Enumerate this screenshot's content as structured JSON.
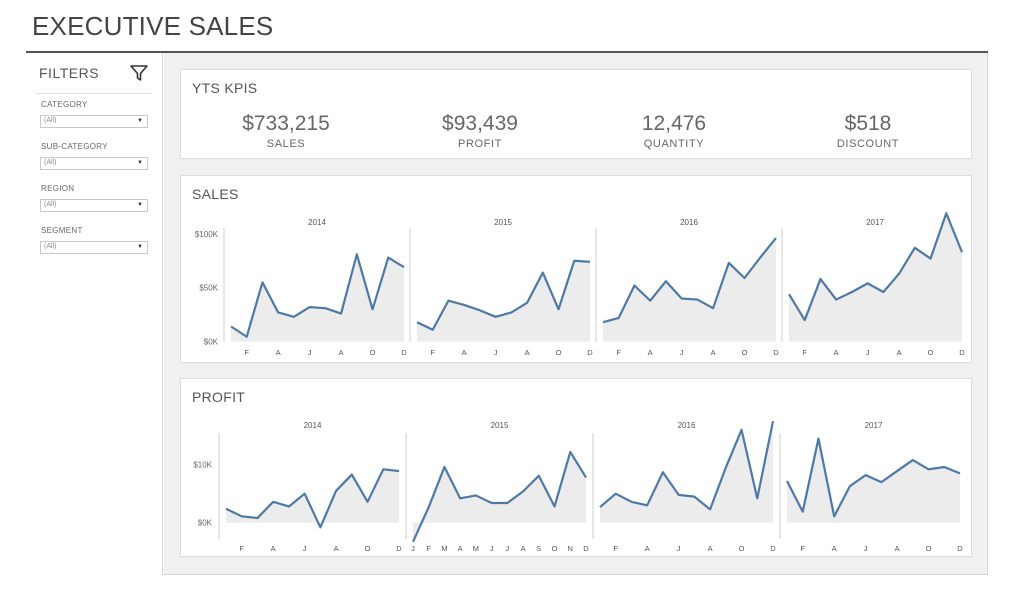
{
  "title": "EXECUTIVE SALES",
  "filters": {
    "title": "FILTERS",
    "icon": "funnel-icon",
    "items": [
      {
        "label": "CATEGORY",
        "value": "(All)"
      },
      {
        "label": "SUB-CATEGORY",
        "value": "(All)"
      },
      {
        "label": "REGION",
        "value": "(All)"
      },
      {
        "label": "SEGMENT",
        "value": "(All)"
      }
    ]
  },
  "kpis": {
    "title": "YTS KPIS",
    "items": [
      {
        "value": "$733,215",
        "label": "SALES"
      },
      {
        "value": "$93,439",
        "label": "PROFIT"
      },
      {
        "value": "12,476",
        "label": "QUANTITY"
      },
      {
        "value": "$518",
        "label": "DISCOUNT"
      }
    ]
  },
  "colors": {
    "line": "#4e79a7",
    "area": "#ececec",
    "divider": "#cfcfcf"
  },
  "chart_data": [
    {
      "type": "area",
      "title": "SALES",
      "ylim": [
        -5000,
        110000
      ],
      "yticks": [
        {
          "value": 0,
          "label": "$0K"
        },
        {
          "value": 50000,
          "label": "$50K"
        },
        {
          "value": 100000,
          "label": "$100K"
        }
      ],
      "panels": [
        {
          "year": "2014",
          "x_labels": [
            "F",
            "A",
            "J",
            "A",
            "O",
            "D"
          ],
          "values": [
            14000,
            4500,
            55000,
            27000,
            23000,
            32000,
            31000,
            26000,
            81000,
            30000,
            78000,
            69000
          ]
        },
        {
          "year": "2015",
          "x_labels": [
            "F",
            "A",
            "J",
            "A",
            "O",
            "D"
          ],
          "values": [
            18000,
            11000,
            38000,
            34000,
            29000,
            23000,
            27000,
            36000,
            64000,
            30000,
            75000,
            74000
          ]
        },
        {
          "year": "2016",
          "x_labels": [
            "F",
            "A",
            "J",
            "A",
            "O",
            "D"
          ],
          "values": [
            18000,
            22000,
            52000,
            38000,
            56000,
            40000,
            39000,
            31000,
            73000,
            59000,
            78000,
            96000
          ]
        },
        {
          "year": "2017",
          "x_labels": [
            "F",
            "A",
            "J",
            "A",
            "O",
            "D"
          ],
          "values": [
            44000,
            20000,
            58000,
            39000,
            46000,
            54000,
            46000,
            63000,
            87000,
            77000,
            119000,
            83000
          ]
        }
      ]
    },
    {
      "type": "area",
      "title": "PROFIT",
      "ylim": [
        -3500,
        16500
      ],
      "yticks": [
        {
          "value": 0,
          "label": "$0K"
        },
        {
          "value": 10000,
          "label": "$10K"
        }
      ],
      "panels": [
        {
          "year": "2014",
          "x_labels": [
            "F",
            "A",
            "J",
            "A",
            "O",
            "D"
          ],
          "values": [
            2400,
            1100,
            800,
            3600,
            2800,
            5000,
            -800,
            5500,
            8300,
            3600,
            9200,
            8900
          ]
        },
        {
          "year": "2015",
          "x_labels": [
            "J",
            "F",
            "M",
            "A",
            "M",
            "J",
            "J",
            "A",
            "S",
            "O",
            "N",
            "D"
          ],
          "values": [
            -3300,
            2700,
            9600,
            4200,
            4700,
            3400,
            3400,
            5400,
            8100,
            2800,
            12200,
            7800
          ]
        },
        {
          "year": "2016",
          "x_labels": [
            "F",
            "A",
            "J",
            "A",
            "O",
            "D"
          ],
          "values": [
            2700,
            5000,
            3600,
            3000,
            8700,
            4800,
            4500,
            2300,
            9500,
            16000,
            4200,
            17500
          ]
        },
        {
          "year": "2017",
          "x_labels": [
            "F",
            "A",
            "J",
            "A",
            "O",
            "D"
          ],
          "values": [
            7200,
            1900,
            14500,
            1100,
            6300,
            8200,
            7000,
            8900,
            10800,
            9200,
            9600,
            8500
          ]
        }
      ]
    }
  ]
}
